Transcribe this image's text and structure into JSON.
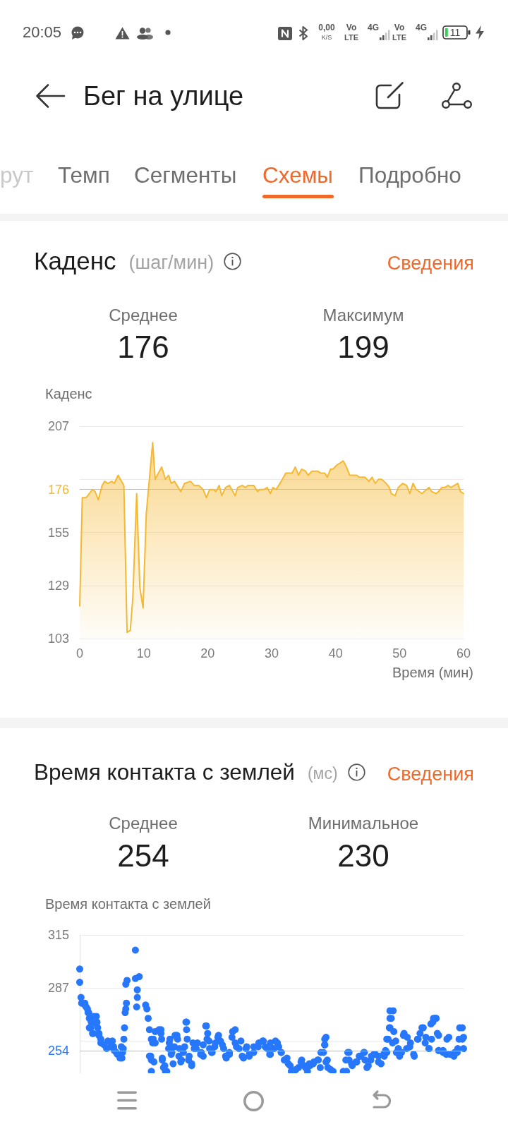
{
  "chart_data": [
    {
      "type": "area",
      "title": "Каденс",
      "subtitle": "(шаг/мин)",
      "ylabel": "Каденс",
      "xlabel": "Время (мин)",
      "color": "#f5b832",
      "x": [
        0,
        0.4,
        1,
        2,
        2.4,
        2.9,
        3.5,
        3.9,
        4.4,
        5,
        5.4,
        6,
        6.9,
        7.4,
        7.9,
        8.3,
        8.9,
        9.4,
        9.9,
        10.4,
        11.4,
        11.8,
        12.8,
        13.4,
        13.9,
        14.3,
        14.8,
        15.8,
        16.4,
        17.3,
        17.9,
        18.6,
        19.3,
        19.8,
        20.3,
        20.9,
        21.3,
        21.8,
        22.2,
        22.8,
        23.4,
        24.3,
        24.7,
        25.4,
        25.9,
        26.3,
        27.2,
        27.8,
        28.1,
        28.8,
        29.3,
        29.8,
        30.2,
        30.7,
        31.5,
        32.2,
        33.2,
        33.7,
        34.2,
        34.7,
        35.3,
        35.7,
        36.3,
        37.2,
        37.7,
        38.3,
        38.7,
        39.2,
        39.6,
        40.2,
        41.2,
        41.7,
        42.2,
        43.3,
        43.7,
        44.6,
        45.2,
        45.7,
        46.2,
        46.7,
        47.2,
        47.9,
        48.4,
        48.7,
        49.3,
        49.8,
        50.5,
        51.1,
        51.6,
        52.1,
        52.6,
        53.5,
        54.6,
        55,
        55.7,
        56.1,
        56.6,
        57.1,
        57.6,
        58,
        59.1,
        59.5,
        60
      ],
      "values": [
        119,
        172,
        172,
        176,
        175,
        171,
        178,
        180,
        179,
        180,
        179,
        183,
        178,
        106,
        107,
        123,
        174,
        128,
        118,
        164,
        199,
        181,
        187,
        181,
        183,
        179,
        180,
        175,
        179,
        180,
        178,
        178,
        176,
        172,
        176,
        176,
        175,
        178,
        173,
        177,
        178,
        173,
        177,
        178,
        177,
        178,
        178,
        175,
        176,
        176,
        177,
        174,
        177,
        176,
        180,
        184,
        184,
        187,
        183,
        186,
        185,
        183,
        185,
        185,
        184,
        184,
        182,
        186,
        186,
        188,
        190,
        187,
        183,
        183,
        182,
        182,
        180,
        182,
        179,
        181,
        181,
        179,
        177,
        174,
        173,
        177,
        179,
        178,
        174,
        179,
        176,
        174,
        177,
        175,
        174,
        175,
        177,
        177,
        178,
        177,
        179,
        175,
        174
      ],
      "xlim": [
        0,
        60
      ],
      "xticks": [
        0,
        10,
        20,
        30,
        40,
        50,
        60
      ],
      "ylim": [
        103,
        207
      ],
      "yticks": [
        103,
        129,
        155,
        {
          "value": 181,
          "label": null
        },
        207
      ],
      "grid": "y",
      "ref_lines": [
        {
          "axis": "y",
          "value": 176,
          "label": "176",
          "color": "#bdbdbd"
        }
      ],
      "annotations": [
        "20:05",
        "0,00",
        "K/S",
        "Vo",
        "LTE",
        "4G",
        "Vo",
        "LTE",
        "4G",
        "11",
        "Бег на улице",
        "рут",
        "Темп",
        "Сегменты",
        "Схемы",
        "Подробно",
        "Сведения",
        "Среднее",
        "176",
        "Максимум",
        "199"
      ]
    },
    {
      "type": "scatter",
      "title": "Время контакта с землей",
      "subtitle": "(мс)",
      "ylabel": "Время контакта с землей",
      "color": "#2677fb",
      "marker": "circle",
      "x": [
        0,
        0,
        0.2,
        0.3,
        0.8,
        1,
        1.2,
        1.4,
        1.5,
        1.8,
        1.7,
        2,
        2.6,
        2.7,
        2.8,
        3,
        3.3,
        3.8,
        4.2,
        5.1,
        5.3,
        5.7,
        6.6,
        6.8,
        6.9,
        7,
        7.1,
        7.2,
        7.3,
        7.2,
        7.4,
        8.7,
        8.7,
        9.3,
        9,
        9,
        8.9,
        10.3,
        10.5,
        10.7,
        10.9,
        10.9,
        11.2,
        11.2,
        11.5,
        11.8,
        12.7,
        12.8,
        12.9,
        13.1,
        13.4,
        13.9,
        14.1,
        14.3,
        14.6,
        14.8,
        15.2,
        15.6,
        15.9,
        16.4,
        16.7,
        16.7,
        17,
        17.5,
        17.7,
        18.2,
        18.9,
        19.3,
        19.8,
        20,
        20.2,
        20.7,
        21.1,
        21.6,
        22,
        22.5,
        22.9,
        23.4,
        23.8,
        24.3,
        24.5,
        25.2,
        25.6,
        26.1,
        26.5,
        27.2,
        27.9,
        28.6,
        29,
        29.7,
        30.2,
        30.6,
        31.1,
        31.5,
        32,
        32.4,
        32.9,
        33.1,
        33.5,
        34.2,
        34.7,
        35.1,
        35.6,
        36,
        36.5,
        37.2,
        37.6,
        38.1,
        38.3,
        38.5,
        38.7,
        39.2,
        39.6,
        41.7,
        41.9,
        42.1,
        42.6,
        43.3,
        43.7,
        44.4,
        44.6,
        45.1,
        45.5,
        46,
        46.7,
        47.1,
        47.6,
        48,
        48.2,
        48.5,
        48.7,
        49,
        49.1,
        49.4,
        49.8,
        50.3,
        50.7,
        51.2,
        51.6,
        52.3,
        52.8,
        53.2,
        53.7,
        54.1,
        54.6,
        55,
        55.2,
        55.5,
        55.7,
        56.1,
        56.1,
        56.8,
        57.3,
        57.7,
        58.6,
        59.1,
        59.3,
        59.8,
        60,
        0.8,
        1.3,
        2.2,
        2.6,
        1.5,
        2.1,
        3,
        3.3,
        4.4,
        4.8,
        5.4,
        5.9,
        6.3,
        6.7,
        6.5,
        11.2,
        11.4,
        11.8,
        12.4,
        12.7,
        11.1,
        11.6,
        12.9,
        13.3,
        13.6,
        14,
        14.4,
        14.9,
        15.3,
        15.5,
        15.8,
        16.2,
        16.6,
        16.8,
        17.1,
        17.5,
        17.9,
        18.4,
        19,
        19.3,
        19.7,
        19.9,
        20.3,
        20.6,
        21.2,
        21.7,
        22.3,
        22.8,
        23.4,
        23.9,
        24.3,
        24.9,
        25.4,
        26,
        26.5,
        27.2,
        28,
        28.7,
        29.3,
        29.8,
        29.8,
        30.4,
        30.9,
        31.5,
        32,
        32.6,
        33.1,
        33.8,
        34.6,
        35.3,
        35.9,
        36.6,
        37.3,
        37.7,
        38.3,
        38.3,
        38.5,
        38.8,
        41.2,
        41.6,
        42.1,
        42.5,
        43.2,
        43.9,
        44.5,
        44.9,
        45.6,
        46.2,
        46.7,
        47.5,
        47.8,
        48,
        48.4,
        48.5,
        48.5,
        48.9,
        49.5,
        50,
        50.6,
        51.1,
        51.7,
        52.2,
        52.9,
        53.5,
        54,
        54.6,
        54.9,
        55.3,
        55.7,
        55.9,
        56.1,
        56.8,
        57.4,
        57.9,
        58.5,
        59,
        59.4,
        59.8,
        60
      ],
      "values": [
        297,
        290,
        282,
        279,
        279,
        277,
        276,
        274,
        271,
        269,
        266,
        263,
        272,
        269,
        266,
        263,
        260,
        257,
        255,
        259,
        256,
        253,
        250,
        255,
        260,
        266,
        274,
        276,
        279,
        289,
        291,
        307,
        292,
        293,
        286,
        282,
        277,
        278,
        276,
        271,
        265,
        251,
        249,
        243,
        260,
        258,
        265,
        260,
        250,
        245,
        243,
        255,
        260,
        252,
        247,
        256,
        262,
        255,
        249,
        256,
        265,
        269,
        249,
        246,
        258,
        255,
        252,
        257,
        267,
        263,
        259,
        253,
        256,
        261,
        259,
        255,
        250,
        252,
        261,
        265,
        256,
        259,
        250,
        256,
        251,
        253,
        256,
        259,
        256,
        252,
        255,
        259,
        256,
        253,
        249,
        250,
        246,
        243,
        243,
        245,
        249,
        246,
        243,
        246,
        247,
        249,
        245,
        253,
        257,
        261,
        249,
        244,
        243,
        243,
        253,
        249,
        246,
        248,
        251,
        253,
        249,
        246,
        249,
        252,
        251,
        247,
        251,
        253,
        260,
        266,
        271,
        275,
        264,
        259,
        255,
        253,
        263,
        261,
        256,
        251,
        260,
        263,
        266,
        261,
        255,
        260,
        269,
        271,
        271,
        262,
        254,
        254,
        252,
        261,
        253,
        255,
        260,
        266,
        261,
        278,
        274,
        272,
        268,
        266,
        263,
        262,
        258,
        259,
        256,
        254,
        252,
        250,
        253,
        256,
        260,
        258,
        264,
        265,
        263,
        251,
        248,
        249,
        246,
        243,
        258,
        253,
        262,
        260,
        251,
        248,
        253,
        269,
        260,
        251,
        247,
        255,
        258,
        253,
        251,
        267,
        260,
        255,
        253,
        258,
        262,
        257,
        251,
        253,
        264,
        258,
        255,
        251,
        255,
        252,
        256,
        258,
        259,
        255,
        252,
        258,
        255,
        258,
        253,
        249,
        247,
        243,
        244,
        248,
        245,
        247,
        248,
        249,
        253,
        260,
        257,
        248,
        245,
        243,
        249,
        253,
        247,
        248,
        251,
        253,
        245,
        251,
        252,
        248,
        252,
        254,
        260,
        266,
        271,
        275,
        258,
        253,
        251,
        262,
        255,
        258,
        252,
        260,
        266,
        258,
        255,
        268,
        271,
        271,
        263,
        254,
        253,
        260,
        252,
        251,
        253,
        266,
        260,
        255
      ],
      "xlim": [
        0,
        60
      ],
      "ylim": [
        242,
        315
      ],
      "yticks": [
        {
          "value": 259,
          "label": null
        },
        287,
        315
      ],
      "grid": "y",
      "tick_labels": "y",
      "ref_lines": [
        {
          "axis": "y",
          "value": 254,
          "label": "254",
          "color": "#bdbdbd"
        }
      ],
      "annotations": [
        "Сведения",
        "Среднее",
        "254",
        "Минимальное",
        "230"
      ]
    }
  ]
}
